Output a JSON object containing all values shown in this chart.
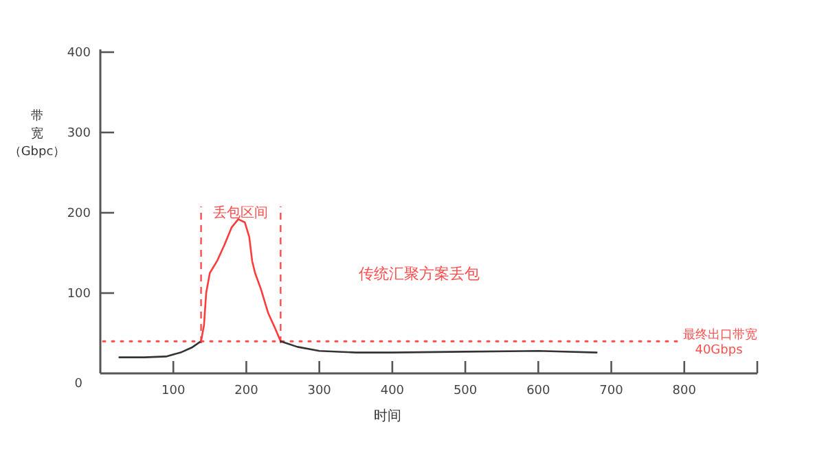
{
  "chart_data": {
    "type": "line",
    "xlabel": "时间",
    "ylabel": "带宽（Gbpc）",
    "xlim": [
      0,
      900
    ],
    "ylim": [
      0,
      400
    ],
    "xticks": [
      100,
      200,
      300,
      400,
      500,
      600,
      700,
      800,
      {
        "value": 900,
        "label": null
      }
    ],
    "yticks": [
      0,
      100,
      200,
      300,
      400
    ],
    "grid": false,
    "marker": "none",
    "line_style": "solid",
    "series": [
      {
        "color": "#333333",
        "x": [
          26,
          60,
          90,
          110,
          125,
          138
        ],
        "values": [
          20,
          20,
          21,
          26,
          32,
          40
        ]
      },
      {
        "color": "#ff3b3b",
        "x": [
          138,
          142,
          145,
          150,
          160,
          170,
          180,
          189,
          198,
          204,
          208,
          212,
          220,
          230,
          240,
          247
        ],
        "values": [
          40,
          60,
          100,
          125,
          140,
          160,
          182,
          192,
          188,
          170,
          140,
          125,
          105,
          75,
          55,
          40
        ]
      },
      {
        "color": "#333333",
        "x": [
          247,
          270,
          300,
          350,
          400,
          500,
          600,
          680
        ],
        "values": [
          40,
          33,
          28,
          26,
          26,
          27,
          28,
          26
        ]
      }
    ],
    "ref_lines": [
      {
        "axis": "y",
        "value": 40,
        "label": "最终出口带宽",
        "color": "#ff4d4d",
        "line_style": "dotted"
      },
      {
        "axis": "x",
        "value": 138,
        "color": "#ff4d4d",
        "line_style": "dashed"
      },
      {
        "axis": "x",
        "value": 247,
        "color": "#ff4d4d",
        "line_style": "dashed"
      }
    ],
    "annotations": [
      "传统汇聚方案丢包",
      {
        "text": "丢包区间",
        "x": 192,
        "y": 200
      },
      "40Gbps"
    ]
  }
}
